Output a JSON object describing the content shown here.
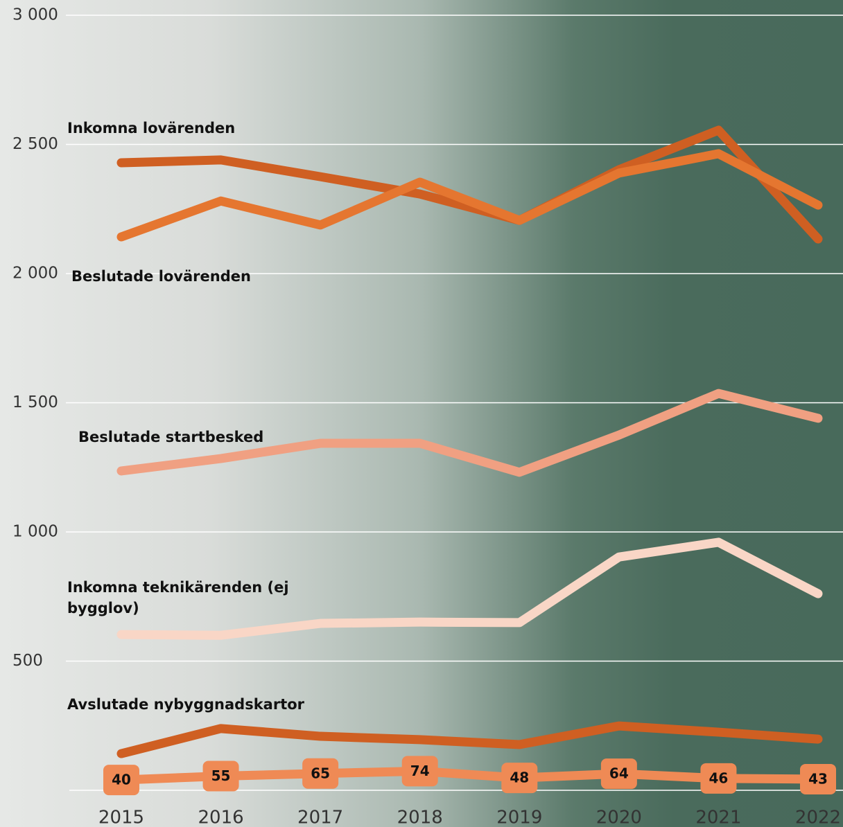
{
  "chart_data": {
    "type": "line",
    "categories": [
      "2015",
      "2016",
      "2017",
      "2018",
      "2019",
      "2020",
      "2021",
      "2022"
    ],
    "ylim": [
      0,
      3000
    ],
    "yticks": [
      500,
      {
        "value": 1000,
        "label": "1 000"
      },
      {
        "value": 1500,
        "label": "1 500"
      },
      {
        "value": 2000,
        "label": "2 000"
      },
      {
        "value": 2500,
        "label": "2 500"
      },
      {
        "value": 3000,
        "label": "3 000"
      }
    ],
    "grid": true,
    "series": [
      {
        "name": "Inkomna lovärenden",
        "color": "#cf5f22",
        "values": [
          2429,
          2440,
          2375,
          2308,
          2206,
          2402,
          2555,
          2134
        ]
      },
      {
        "name": "Beslutade lovärenden",
        "color": "#e57630",
        "values": [
          2142,
          2281,
          2188,
          2354,
          2206,
          2389,
          2464,
          2265
        ]
      },
      {
        "name": "Beslutade startbesked",
        "color": "#f0a082",
        "values": [
          1236,
          1284,
          1343,
          1343,
          1231,
          1375,
          1536,
          1440
        ]
      },
      {
        "name": "Inkomna teknikärenden (ej bygglov)",
        "color": "#f9d6c6",
        "values": [
          603,
          600,
          646,
          651,
          649,
          903,
          960,
          761
        ]
      },
      {
        "name": "Avslutade nybyggnadskartor",
        "color": "#cf5f22",
        "values": [
          142,
          239,
          209,
          196,
          177,
          249,
          225,
          198
        ]
      },
      {
        "color": "#ef8a55",
        "values": [
          40,
          55,
          65,
          74,
          48,
          64,
          46,
          43
        ],
        "value_labels": [
          "40",
          "55",
          "65",
          "74",
          "48",
          "64",
          "46",
          "43"
        ]
      }
    ]
  }
}
